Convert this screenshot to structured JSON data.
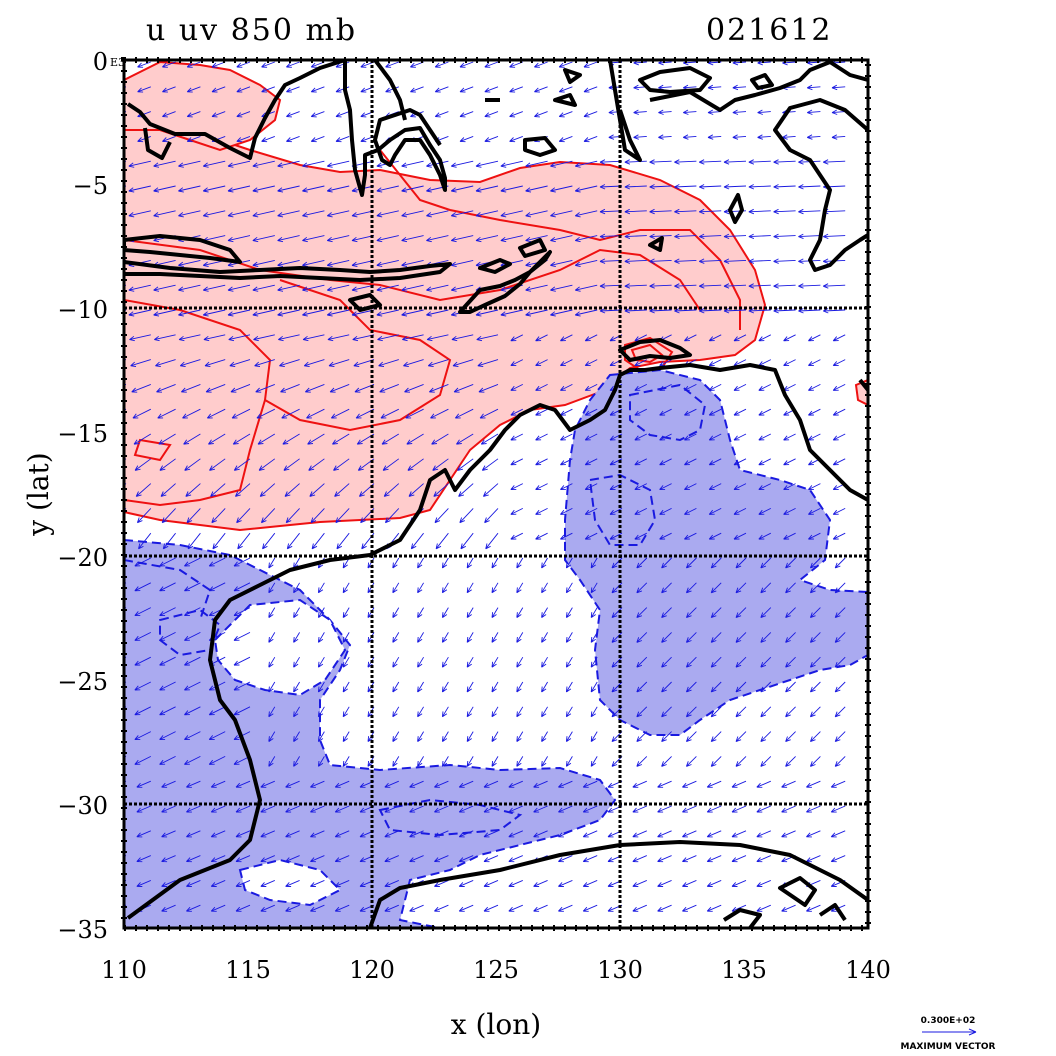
{
  "title_left": "u uv 850 mb",
  "title_right": "021612",
  "xlabel": "x (lon)",
  "ylabel": "y (lat)",
  "corner_label": "E3",
  "x_ticks": [
    "110",
    "115",
    "120",
    "125",
    "130",
    "135",
    "140"
  ],
  "y_ticks": [
    "0",
    "−5",
    "−10",
    "−15",
    "−20",
    "−25",
    "−30",
    "−35"
  ],
  "legend": {
    "value": "0.300E+02",
    "label": "MAXIMUM VECTOR"
  },
  "map_extent": {
    "lon": [
      110,
      140
    ],
    "lat": [
      -35,
      0
    ]
  },
  "grid_lines": {
    "lon": [
      120,
      130
    ],
    "lat": [
      -10,
      -20,
      -30
    ]
  },
  "colors": {
    "positive_fill": "#ffcccc",
    "positive_contour": "#ee1111",
    "negative_fill": "#aaaaf0",
    "negative_contour": "#1a1ae0",
    "vector": "#1a1ae0",
    "coastline": "#000000"
  }
}
